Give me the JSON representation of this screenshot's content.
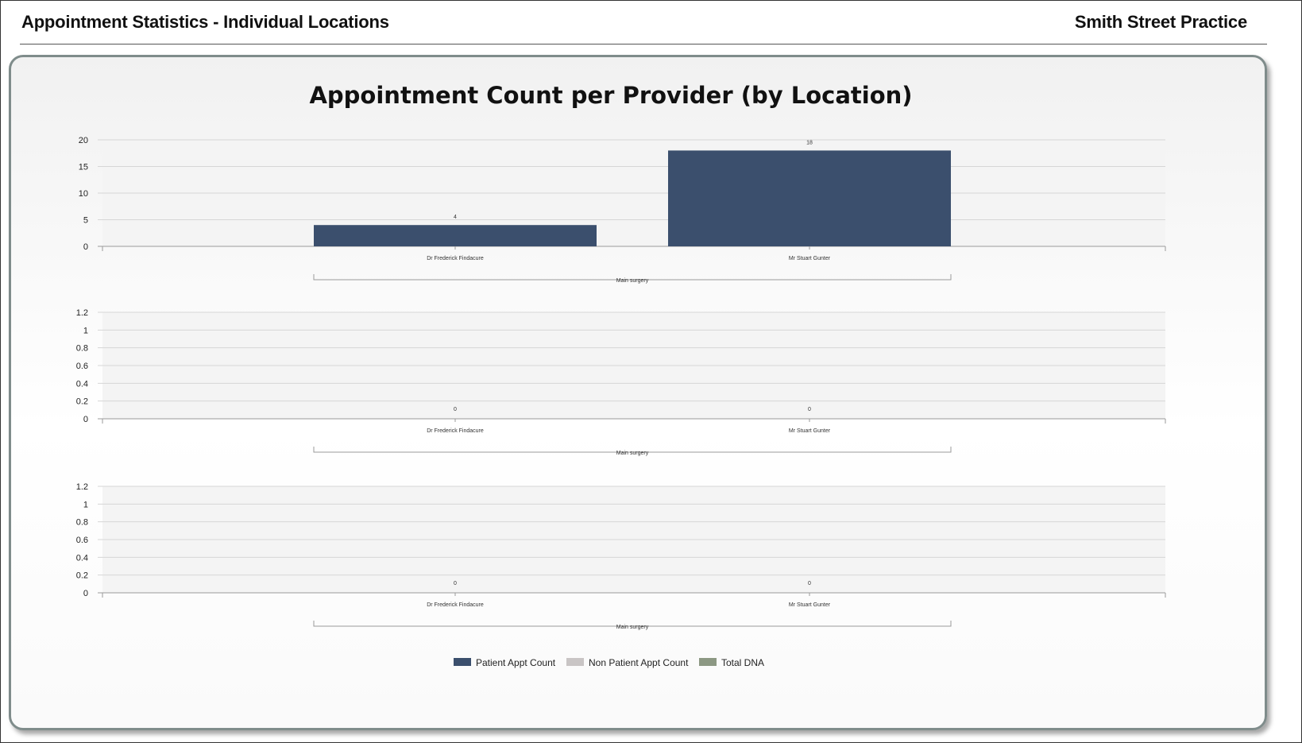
{
  "header": {
    "report_title": "Appointment Statistics - Individual Locations",
    "practice_name": "Smith Street Practice"
  },
  "colors": {
    "patient_appt": "#3b4f6d",
    "non_patient_appt": "#c9c5c5",
    "total_dna": "#8c9883",
    "panel_border": "#7f8c8b"
  },
  "chart_data": {
    "type": "bar",
    "title": "Appointment Count per Provider (by Location)",
    "legend": {
      "placement": "bottom-center",
      "entries": [
        "Patient Appt Count",
        "Non Patient Appt Count",
        "Total DNA"
      ]
    },
    "panels": [
      {
        "series": "Patient Appt Count",
        "group_label": "Main surgery",
        "categories": [
          "Dr Frederick Findacure",
          "Mr Stuart Gunter"
        ],
        "values": [
          4,
          18
        ],
        "value_labels": [
          "4",
          "18"
        ],
        "ylim": [
          0,
          20
        ],
        "yticks": [
          "0",
          "5",
          "10",
          "15",
          "20"
        ],
        "grid": true
      },
      {
        "series": "Non Patient Appt Count",
        "group_label": "Main surgery",
        "categories": [
          "Dr Frederick Findacure",
          "Mr Stuart Gunter"
        ],
        "values": [
          0,
          0
        ],
        "value_labels": [
          "0",
          "0"
        ],
        "ylim": [
          0,
          1.2
        ],
        "yticks": [
          "0",
          "0.2",
          "0.4",
          "0.6",
          "0.8",
          "1",
          "1.2"
        ],
        "grid": true
      },
      {
        "series": "Total DNA",
        "group_label": "Main surgery",
        "categories": [
          "Dr Frederick Findacure",
          "Mr Stuart Gunter"
        ],
        "values": [
          0,
          0
        ],
        "value_labels": [
          "0",
          "0"
        ],
        "ylim": [
          0,
          1.2
        ],
        "yticks": [
          "0",
          "0.2",
          "0.4",
          "0.6",
          "0.8",
          "1",
          "1.2"
        ],
        "grid": true
      }
    ]
  }
}
